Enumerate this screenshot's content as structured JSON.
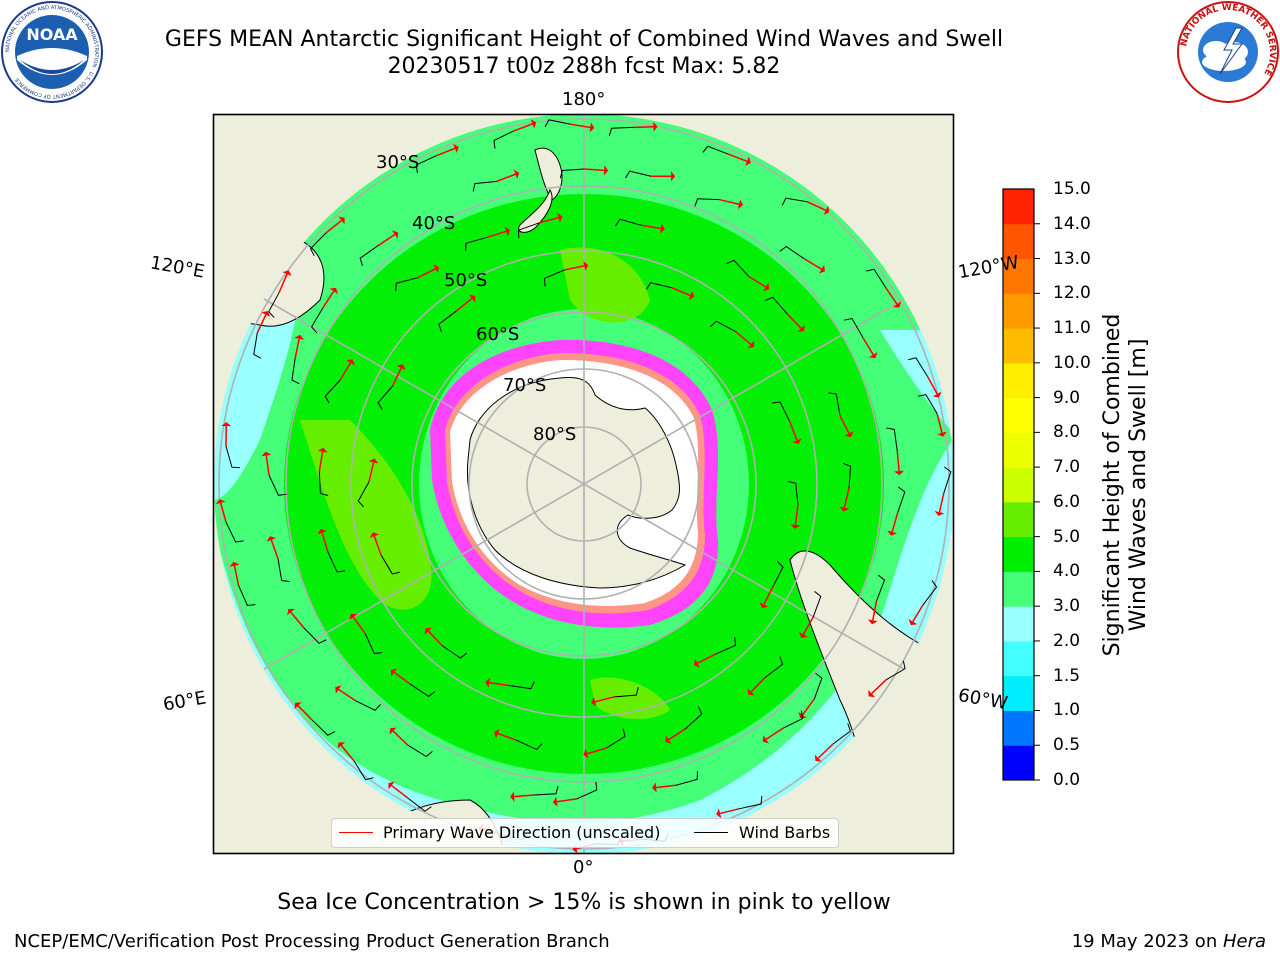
{
  "header": {
    "title_line1": "GEFS MEAN Antarctic Significant Height of Combined Wind Waves and Swell",
    "title_line2": "20230517 t00z 288h fcst   Max: 5.82"
  },
  "logos": {
    "noaa": {
      "text": "NOAA",
      "ring_text": "NATIONAL OCEANIC AND ATMOSPHERIC ADMINISTRATION · U.S. DEPARTMENT OF COMMERCE"
    },
    "nws": {
      "ring_text": "NATIONAL WEATHER SERVICE"
    }
  },
  "map": {
    "lon_labels": {
      "top": "180°",
      "bottom": "0°",
      "upper_left": "120°E",
      "upper_right": "120°W",
      "lower_left": "60°E",
      "lower_right": "60°W"
    },
    "lat_labels": [
      "30°S",
      "40°S",
      "50°S",
      "60°S",
      "70°S",
      "80°S"
    ],
    "colors": {
      "land": "#eeeedd",
      "ice_free_antarctic": "#ffffff",
      "sea_ice_low": "#ff44ff",
      "sea_ice_high": "#ffcc33",
      "wave_arrows": "#ff0000",
      "wind_barbs": "#000000",
      "grid": "#b0b0b0"
    }
  },
  "legend": {
    "primary_wave": "Primary Wave Direction (unscaled)",
    "wind_barbs": "Wind Barbs"
  },
  "colorbar": {
    "label_line1": "Significant Height of Combined",
    "label_line2": "Wind Waves and Swell [m]",
    "ticks": [
      "15.0",
      "14.0",
      "13.0",
      "12.0",
      "11.0",
      "10.0",
      "9.0",
      "8.0",
      "7.0",
      "6.0",
      "5.0",
      "4.0",
      "3.0",
      "2.0",
      "1.5",
      "1.0",
      "0.5",
      "0.0"
    ],
    "colors": [
      "#0000ff",
      "#0077ff",
      "#00eeff",
      "#44ffff",
      "#99ffff",
      "#44ff77",
      "#00ee00",
      "#66ee00",
      "#ccff00",
      "#eeff00",
      "#ffff00",
      "#ffee00",
      "#ffbb00",
      "#ff9900",
      "#ff7700",
      "#ff5500",
      "#ff2200"
    ]
  },
  "notes": {
    "sea_ice": "Sea Ice Concentration > 15% is shown in pink to yellow",
    "credit": "NCEP/EMC/Verification Post Processing Product Generation Branch",
    "date_prefix": "19 May 2023 on ",
    "host": "Hera"
  }
}
